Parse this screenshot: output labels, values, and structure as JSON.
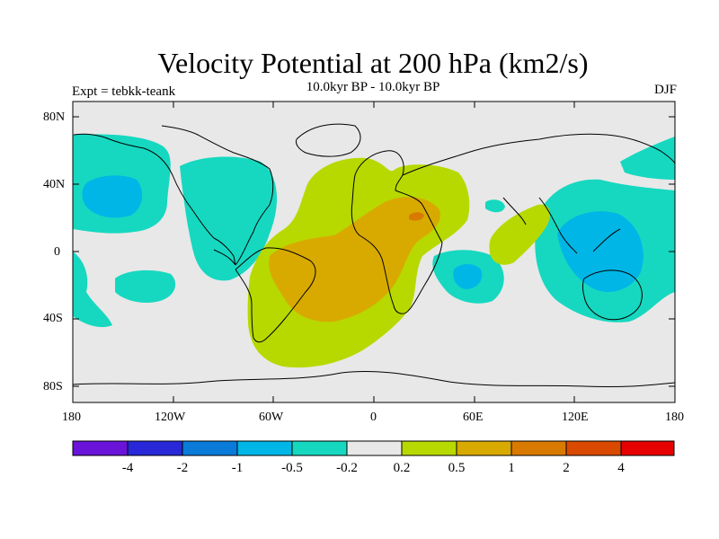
{
  "title": "Velocity Potential at 200 hPa (km2/s)",
  "subtitle": "10.0kyr BP - 10.0kyr BP",
  "left_label": "Expt = tebkk-teank",
  "right_label": "DJF",
  "lat_ticks": [
    "80N",
    "40N",
    "0",
    "40S",
    "80S"
  ],
  "lon_ticks": [
    "180",
    "120W",
    "60W",
    "0",
    "60E",
    "120E",
    "180"
  ],
  "colorbar": {
    "colors": [
      "#6a14d9",
      "#2828d8",
      "#0a7bd9",
      "#00b6e6",
      "#16d8c0",
      "#e8e8e8",
      "#b7d900",
      "#d8aa00",
      "#d97a00",
      "#d94a00",
      "#e60000"
    ],
    "labels": [
      "-4",
      "-2",
      "-1",
      "-0.5",
      "-0.2",
      "0.2",
      "0.5",
      "1",
      "2",
      "4"
    ]
  },
  "map": {
    "background_color": "#e8e8e8",
    "lon_range": [
      -180,
      180
    ],
    "lat_range": [
      -90,
      90
    ]
  }
}
